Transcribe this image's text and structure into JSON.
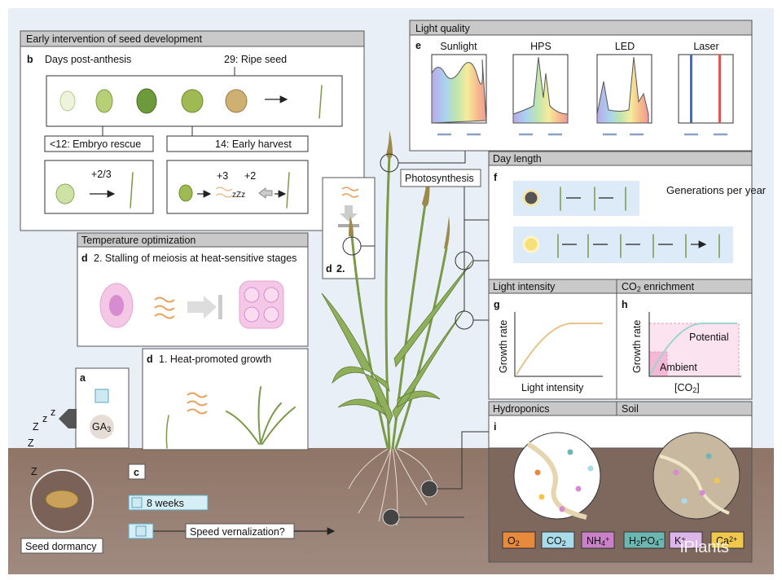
{
  "panel_b": {
    "header": "Early intervention of seed development",
    "letter": "b",
    "days_label": "Days post-anthesis",
    "ripe_label": "29: Ripe seed",
    "embryo_rescue": "<12: Embryo rescue",
    "early_harvest": "14: Early harvest",
    "rescue_gain": "+2/3",
    "harvest_gain_1": "+3",
    "harvest_gain_2": "+2",
    "sleep_small": "zZz"
  },
  "panel_d": {
    "header": "Temperature optimization",
    "letter": "d",
    "stage2": "2. Stalling of meiosis at heat-sensitive stages",
    "stage1": "1. Heat-promoted growth",
    "inset_label": "2."
  },
  "panel_a": {
    "letter": "a",
    "hormone": [
      {
        "t": "GA"
      },
      {
        "t": "3",
        "s": "sub"
      }
    ],
    "sleep": [
      "z",
      "z",
      "Z",
      "Z",
      "Z"
    ]
  },
  "dormancy": "Seed dormancy",
  "panel_c": {
    "letter": "c",
    "duration": "8 weeks",
    "question": "Speed vernalization?"
  },
  "panel_e": {
    "header": "Light quality",
    "letter": "e",
    "sources": [
      "Sunlight",
      "HPS",
      "LED",
      "Laser"
    ]
  },
  "photosynthesis": "Photosynthesis",
  "panel_f": {
    "header": "Day length",
    "letter": "f",
    "label": "Generations per year"
  },
  "panel_g": {
    "header": "Light intensity",
    "letter": "g",
    "y_label": "Growth rate",
    "x_label": "Light intensity"
  },
  "panel_h": {
    "header": [
      {
        "t": "CO"
      },
      {
        "t": "2",
        "s": "sub"
      },
      {
        "t": " enrichment"
      }
    ],
    "letter": "h",
    "y_label": "Growth rate",
    "potential": "Potential",
    "ambient": "Ambient",
    "x_label": [
      {
        "t": "[CO"
      },
      {
        "t": "2",
        "s": "sub"
      },
      {
        "t": "]"
      }
    ]
  },
  "panel_i": {
    "hydroponics": "Hydroponics",
    "soil": "Soil",
    "letter": "i",
    "nutrients": [
      {
        "color": "#e88a3c",
        "parts": [
          {
            "t": "O"
          },
          {
            "t": "2",
            "s": "sub"
          }
        ]
      },
      {
        "color": "#a9dbe9",
        "parts": [
          {
            "t": "CO"
          },
          {
            "t": "2",
            "s": "sub"
          }
        ]
      },
      {
        "color": "#c880c6",
        "parts": [
          {
            "t": "NH"
          },
          {
            "t": "4",
            "s": "sub"
          },
          {
            "t": "+",
            "s": "sup"
          }
        ]
      },
      {
        "color": "#6db7b2",
        "parts": [
          {
            "t": "H"
          },
          {
            "t": "2",
            "s": "sub"
          },
          {
            "t": "PO"
          },
          {
            "t": "4",
            "s": "sub"
          },
          {
            "t": "−",
            "s": "sup"
          }
        ]
      },
      {
        "color": "#dcb6e8",
        "parts": [
          {
            "t": "K"
          },
          {
            "t": "+",
            "s": "sup"
          }
        ]
      },
      {
        "color": "#f1c84c",
        "parts": [
          {
            "t": "Ca"
          },
          {
            "t": "2+",
            "s": "sup"
          }
        ]
      }
    ]
  },
  "watermark": "iPlants"
}
